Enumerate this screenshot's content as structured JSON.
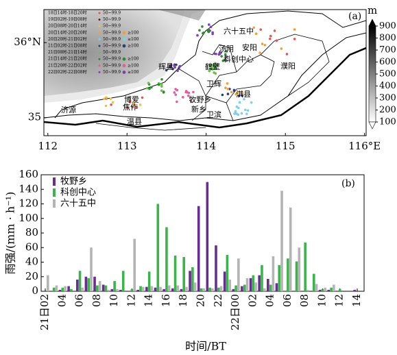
{
  "map_panel": {
    "panel_label": "(a)",
    "xlim": [
      111.95,
      116.02
    ],
    "ylim": [
      34.76,
      36.44
    ],
    "xticks": [
      112,
      113,
      114,
      115,
      {
        "value": 116,
        "label": "116°E"
      }
    ],
    "yticks": [
      35,
      {
        "value": 36,
        "label": "36°N"
      }
    ],
    "colorbar": {
      "unit": "m",
      "range": [
        100,
        900
      ],
      "ticks": [
        100,
        200,
        300,
        400,
        500,
        600,
        700,
        800,
        900
      ]
    },
    "legend": [
      {
        "period": "18日14时-18日20时",
        "color": "#e8554e",
        "levels": [
          "50~99.9"
        ]
      },
      {
        "period": "19日02时-19日08时",
        "color": "#7a1a1a",
        "levels": [
          "50~99.9"
        ]
      },
      {
        "period": "20日08时-20日14时",
        "color": "#e8c53a",
        "levels": [
          "50~99.9"
        ]
      },
      {
        "period": "20日14时-20日20时",
        "color": "#f0a030",
        "levels": [
          "50~99.9",
          "≥100"
        ]
      },
      {
        "period": "20日20时-21日02时",
        "color": "#7fd0e6",
        "levels": [
          "50~99.9",
          "≥100"
        ]
      },
      {
        "period": "21日02时-21日08时",
        "color": "#2a3f7a",
        "levels": [
          "50~99.9",
          "≥100"
        ]
      },
      {
        "period": "21日08时-21日14时",
        "color": "#6abf4b",
        "levels": [
          "50~99.9"
        ]
      },
      {
        "period": "21日14时-21日20时",
        "color": "#2e8b2e",
        "levels": [
          "50~99.9",
          "≥100"
        ]
      },
      {
        "period": "21日20时-22日02时",
        "color": "#e85aa0",
        "levels": [
          "50~99.9",
          "≥100"
        ]
      },
      {
        "period": "22日02时-22日08时",
        "color": "#8040b0",
        "levels": [
          "50~99.9",
          "≥100"
        ]
      }
    ],
    "places": [
      "济源",
      "博爱",
      "焦作",
      "温县",
      "辉县",
      "新乡",
      "牧野乡",
      "卫滨",
      "卫辉",
      "淇县",
      "鹤壁",
      "汤阴",
      "科创中心",
      "六十五中",
      "安阳",
      "濮阳"
    ]
  },
  "chart_data": {
    "type": "bar",
    "panel_label": "(b)",
    "y_label": "雨强/(mm · h⁻¹)",
    "x_label": "时间/BT",
    "categories": [
      "21日02",
      null,
      "04",
      null,
      "06",
      null,
      "08",
      null,
      "10",
      null,
      "12",
      null,
      "14",
      null,
      "16",
      null,
      "18",
      null,
      "20",
      null,
      "22",
      null,
      "22日00",
      null,
      "02",
      null,
      "04",
      null,
      "06",
      null,
      "08",
      null,
      "10",
      null,
      "12",
      null,
      "14"
    ],
    "ylim": [
      0,
      160
    ],
    "yticks": [
      0,
      20,
      40,
      60,
      80,
      100,
      120,
      140,
      160
    ],
    "series": [
      {
        "name": "牧野乡",
        "color": "#6a2c91",
        "values": [
          0,
          0,
          2,
          7,
          16,
          20,
          20,
          9,
          3,
          2,
          0,
          2,
          6,
          5,
          3,
          4,
          3,
          28,
          117,
          150,
          63,
          27,
          3,
          7,
          18,
          22,
          17,
          11,
          0,
          0,
          0,
          0,
          2,
          2,
          0,
          0,
          2
        ]
      },
      {
        "name": "科创中心",
        "color": "#3cb44b",
        "values": [
          0,
          5,
          5,
          3,
          28,
          18,
          8,
          8,
          14,
          28,
          3,
          7,
          27,
          120,
          88,
          49,
          47,
          33,
          4,
          5,
          5,
          50,
          8,
          9,
          22,
          36,
          9,
          36,
          45,
          41,
          67,
          24,
          3,
          5,
          3,
          0,
          0
        ]
      },
      {
        "name": "六十五中",
        "color": "#b4b4b4",
        "values": [
          22,
          8,
          7,
          0,
          5,
          60,
          14,
          2,
          3,
          0,
          72,
          6,
          7,
          6,
          8,
          8,
          6,
          12,
          4,
          4,
          7,
          16,
          45,
          18,
          12,
          4,
          48,
          138,
          115,
          60,
          2,
          10,
          5,
          9,
          0,
          0,
          0
        ]
      }
    ]
  }
}
